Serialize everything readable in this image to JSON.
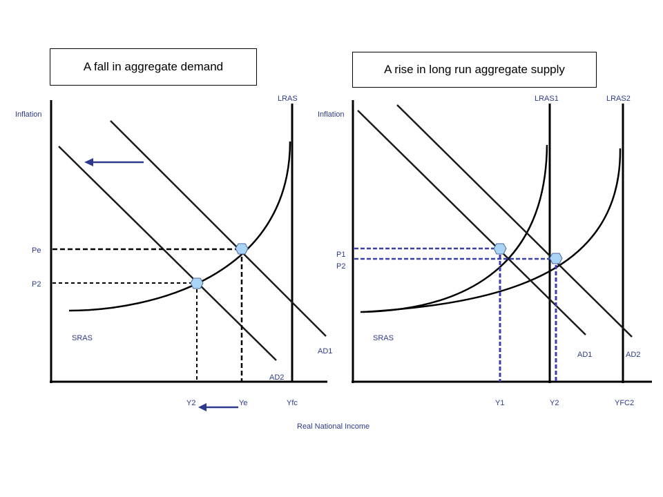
{
  "left_panel": {
    "title": "A fall in aggregate demand",
    "y_axis_label": "Inflation",
    "curves": {
      "lras": "LRAS",
      "sras": "SRAS",
      "ad1": "AD1",
      "ad2": "AD2"
    },
    "price_labels": {
      "pe": "Pe",
      "p2": "P2"
    },
    "income_labels": {
      "y2": "Y2",
      "ye": "Ye",
      "yfc": "Yfc"
    }
  },
  "right_panel": {
    "title": "A rise in long run aggregate supply",
    "y_axis_label": "Inflation",
    "curves": {
      "lras1": "LRAS1",
      "lras2": "LRAS2",
      "sras": "SRAS",
      "ad1": "AD1",
      "ad2": "AD2"
    },
    "price_labels": {
      "p1": "P1",
      "p2": "P2"
    },
    "income_labels": {
      "y1": "Y1",
      "y2": "Y2",
      "yfc2": "YFC2"
    }
  },
  "x_axis_label": "Real National Income",
  "colors": {
    "accent": "#2d3a8c",
    "dashed_right": "#3a3fb0",
    "point_fill": "#a9d4f5",
    "line": "#1a1a1a"
  }
}
